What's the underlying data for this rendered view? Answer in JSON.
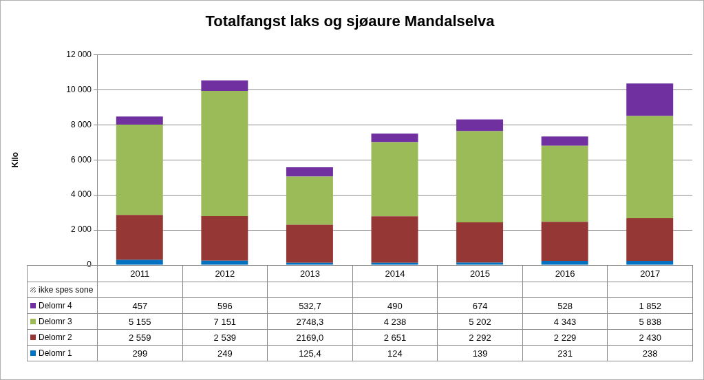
{
  "chart_data": {
    "type": "bar",
    "title": "Totalfangst laks og sjøaure Mandalselva",
    "y_label": "Kilo",
    "categories": [
      "2011",
      "2012",
      "2013",
      "2014",
      "2015",
      "2016",
      "2017"
    ],
    "stacked": true,
    "grid": true,
    "ylim": [
      0,
      12000
    ],
    "yticks": [
      0,
      {
        "value": 2000,
        "label": "2 000"
      },
      {
        "value": 4000,
        "label": "4 000"
      },
      {
        "value": 6000,
        "label": "6 000"
      },
      {
        "value": 8000,
        "label": "8 000"
      },
      {
        "value": 10000,
        "label": "10 000"
      },
      {
        "value": 12000,
        "label": "12 000"
      }
    ],
    "series": [
      {
        "name": "ikke spes sone",
        "color": "#7f7f7f",
        "values": [
          null,
          null,
          null,
          null,
          null,
          null,
          null
        ]
      },
      {
        "name": "Delomr 4",
        "color": "#7030a0",
        "values": [
          457,
          596,
          532.7,
          490,
          674,
          528,
          1852
        ],
        "value_labels": [
          "457",
          "596",
          "532,7",
          "490",
          "674",
          "528",
          "1 852"
        ]
      },
      {
        "name": "Delomr 3",
        "color": "#9bbb59",
        "values": [
          5155,
          7151,
          2748.3,
          4238,
          5202,
          4343,
          5838
        ],
        "value_labels": [
          "5 155",
          "7 151",
          "2748,3",
          "4 238",
          "5 202",
          "4 343",
          "5 838"
        ]
      },
      {
        "name": "Delomr 2",
        "color": "#953735",
        "values": [
          2559,
          2539,
          2169.0,
          2651,
          2292,
          2229,
          2430
        ],
        "value_labels": [
          "2 559",
          "2 539",
          "2169,0",
          "2 651",
          "2 292",
          "2 229",
          "2 430"
        ]
      },
      {
        "name": "Delomr 1",
        "color": "#0070c0",
        "values": [
          299,
          249,
          125.4,
          124,
          139,
          231,
          238
        ],
        "value_labels": [
          "299",
          "249",
          "125,4",
          "124",
          "139",
          "231",
          "238"
        ]
      }
    ]
  }
}
